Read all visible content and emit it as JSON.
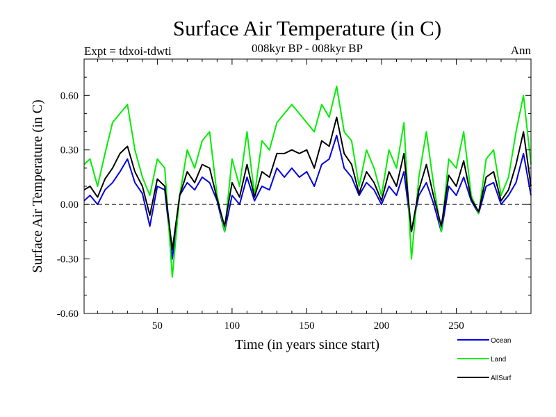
{
  "chart_data": {
    "type": "line",
    "title": "Surface Air Temperature (in C)",
    "subtitle": "008kyr BP - 008kyr BP",
    "left_note": "Expt = tdxoi-tdwti",
    "right_note": "Ann",
    "xlabel": "Time (in years since start)",
    "ylabel": "Surface Air Temperature (in C)",
    "xlim": [
      1,
      300
    ],
    "ylim": [
      -0.6,
      0.8
    ],
    "xticks": [
      {
        "value": 50,
        "label": "50"
      },
      {
        "value": 100,
        "label": "100"
      },
      {
        "value": 150,
        "label": "150"
      },
      {
        "value": 200,
        "label": "200"
      },
      {
        "value": 250,
        "label": "250"
      }
    ],
    "yticks": [
      {
        "value": -0.6,
        "label": "-0.60"
      },
      {
        "value": -0.3,
        "label": "-0.30"
      },
      {
        "value": 0.0,
        "label": "0.00"
      },
      {
        "value": 0.3,
        "label": "0.30"
      },
      {
        "value": 0.6,
        "label": "0.60"
      }
    ],
    "zero_line": true,
    "grid": false,
    "legend_position": "bottom-right",
    "x": [
      1,
      5,
      10,
      15,
      20,
      25,
      30,
      35,
      40,
      45,
      50,
      55,
      60,
      65,
      70,
      75,
      80,
      85,
      90,
      95,
      100,
      105,
      110,
      115,
      120,
      125,
      130,
      135,
      140,
      145,
      150,
      155,
      160,
      165,
      170,
      175,
      180,
      185,
      190,
      195,
      200,
      205,
      210,
      215,
      220,
      225,
      230,
      235,
      240,
      245,
      250,
      255,
      260,
      265,
      270,
      275,
      280,
      285,
      290,
      295,
      300
    ],
    "series": [
      {
        "name": "Ocean",
        "color": "#0000e0",
        "values": [
          0.02,
          0.05,
          0.0,
          0.08,
          0.12,
          0.18,
          0.25,
          0.12,
          0.06,
          -0.12,
          0.1,
          0.08,
          -0.3,
          0.05,
          0.12,
          0.08,
          0.15,
          0.12,
          0.02,
          -0.15,
          0.05,
          0.0,
          0.15,
          0.02,
          0.1,
          0.08,
          0.2,
          0.15,
          0.2,
          0.15,
          0.18,
          0.1,
          0.22,
          0.25,
          0.38,
          0.2,
          0.15,
          0.05,
          0.12,
          0.08,
          0.0,
          0.1,
          0.05,
          0.18,
          -0.15,
          0.05,
          0.12,
          0.0,
          -0.15,
          0.1,
          0.05,
          0.15,
          0.02,
          -0.05,
          0.1,
          0.12,
          0.0,
          0.05,
          0.12,
          0.28,
          0.05
        ]
      },
      {
        "name": "Land",
        "color": "#00ee00",
        "values": [
          0.22,
          0.25,
          0.1,
          0.28,
          0.45,
          0.5,
          0.55,
          0.3,
          0.15,
          0.05,
          0.25,
          0.2,
          -0.4,
          0.05,
          0.3,
          0.2,
          0.35,
          0.4,
          0.05,
          -0.15,
          0.25,
          0.1,
          0.4,
          0.05,
          0.35,
          0.3,
          0.45,
          0.5,
          0.55,
          0.5,
          0.45,
          0.4,
          0.55,
          0.48,
          0.65,
          0.4,
          0.35,
          0.1,
          0.3,
          0.2,
          0.05,
          0.3,
          0.2,
          0.45,
          -0.3,
          0.15,
          0.4,
          0.1,
          -0.15,
          0.25,
          0.2,
          0.4,
          0.05,
          -0.05,
          0.25,
          0.3,
          0.05,
          0.15,
          0.4,
          0.6,
          0.22
        ]
      },
      {
        "name": "AllSurf",
        "color": "#000000",
        "values": [
          0.08,
          0.1,
          0.04,
          0.14,
          0.2,
          0.28,
          0.32,
          0.18,
          0.1,
          -0.06,
          0.14,
          0.1,
          -0.25,
          0.05,
          0.18,
          0.12,
          0.22,
          0.2,
          0.03,
          -0.12,
          0.12,
          0.04,
          0.22,
          0.04,
          0.18,
          0.15,
          0.28,
          0.28,
          0.3,
          0.28,
          0.3,
          0.2,
          0.35,
          0.32,
          0.48,
          0.28,
          0.22,
          0.06,
          0.18,
          0.12,
          0.02,
          0.18,
          0.1,
          0.28,
          -0.15,
          0.08,
          0.22,
          0.04,
          -0.12,
          0.16,
          0.1,
          0.24,
          0.03,
          -0.04,
          0.15,
          0.18,
          0.02,
          0.08,
          0.22,
          0.4,
          0.1
        ]
      }
    ]
  }
}
